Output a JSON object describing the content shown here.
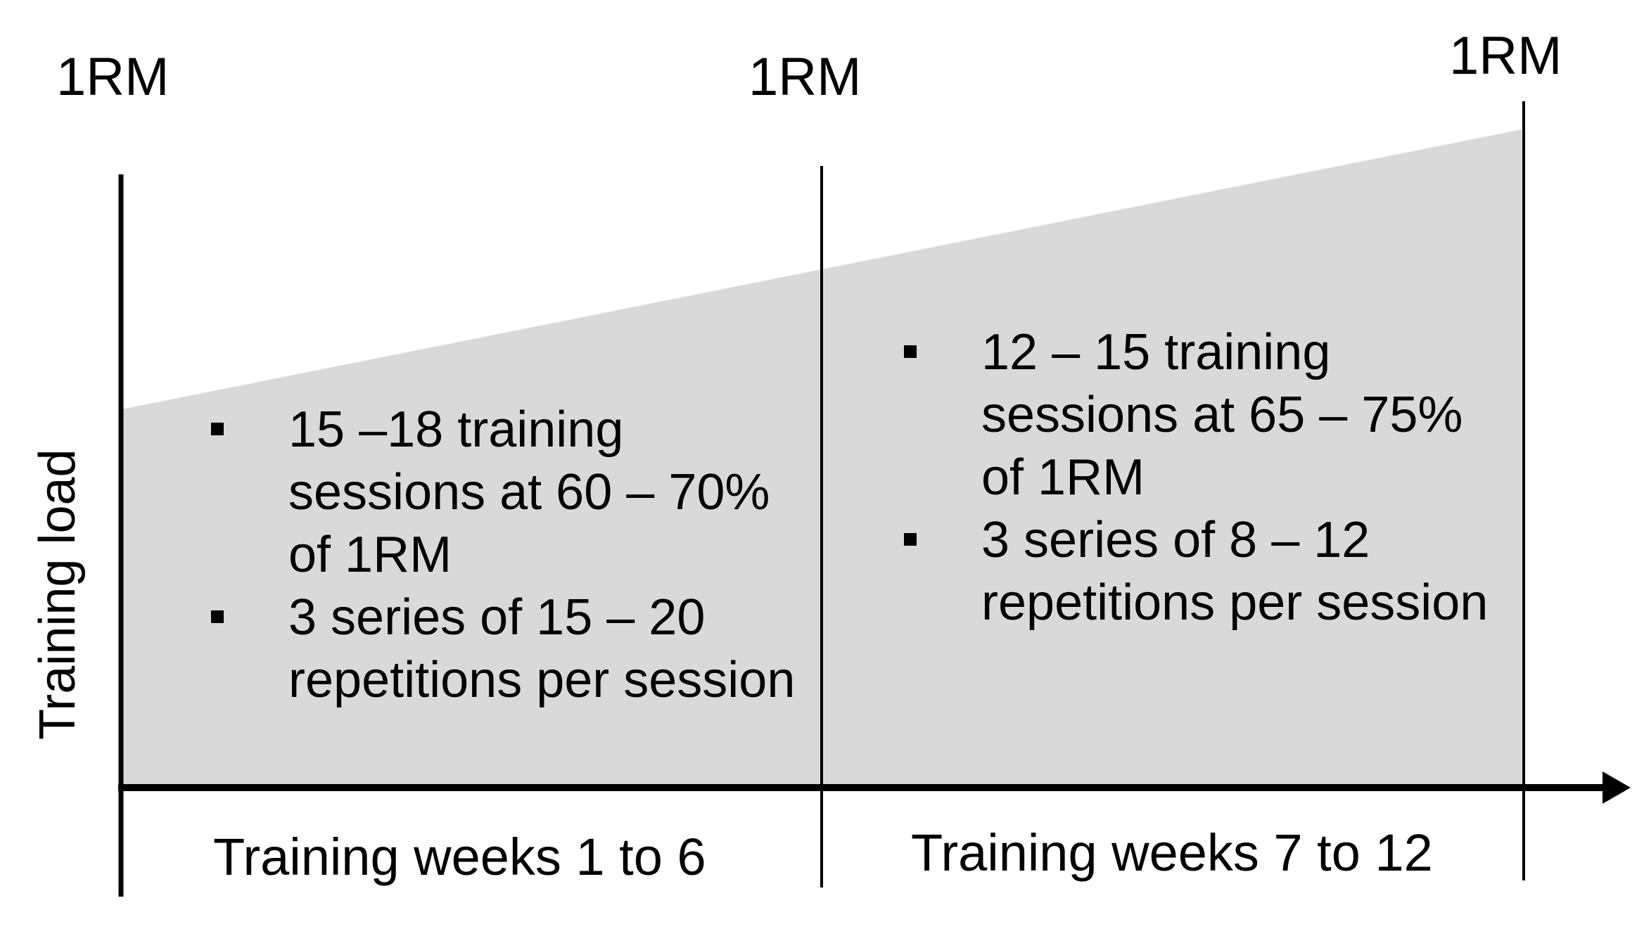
{
  "markers": {
    "rm_start": "1RM",
    "rm_mid": "1RM",
    "rm_end": "1RM"
  },
  "y_axis_label": "Training load",
  "phases": [
    {
      "label": "Training weeks 1 to 6",
      "bullets": [
        "15 –18 training sessions at 60 – 70% of 1RM",
        "3 series of 15 – 20 repetitions per session"
      ]
    },
    {
      "label": "Training weeks 7 to 12",
      "bullets": [
        "12 – 15 training sessions at 65 – 75% of 1RM",
        "3 series of 8 – 12 repetitions per session"
      ]
    }
  ],
  "colors": {
    "load_fill": "#d9d9d9",
    "lines": "#000000"
  }
}
